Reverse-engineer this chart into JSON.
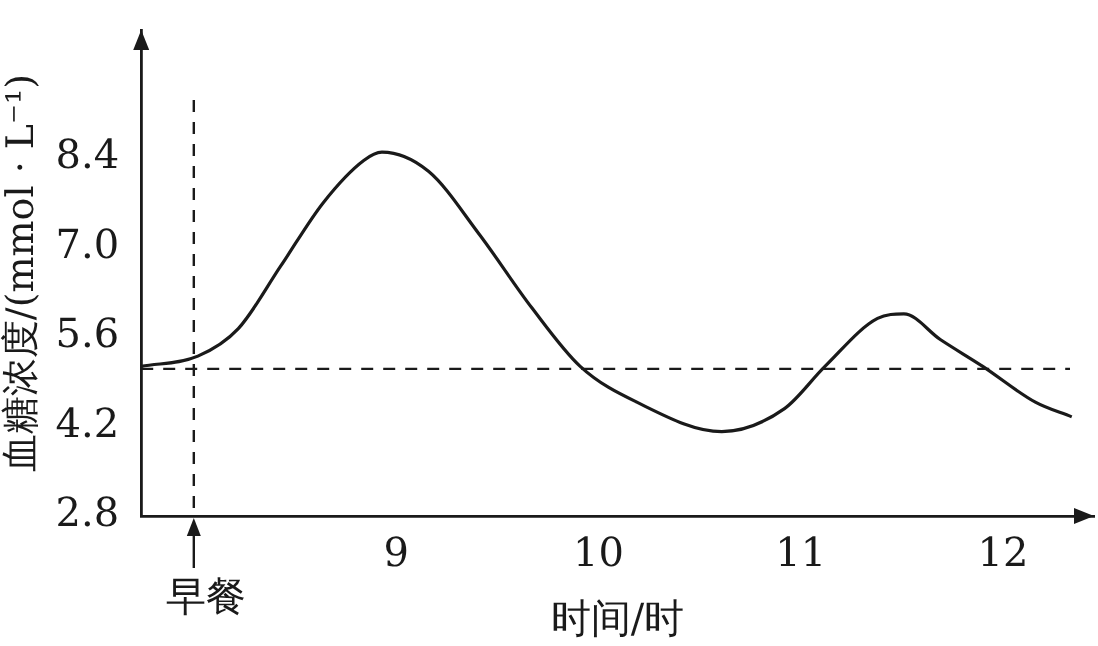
{
  "chart_data": {
    "type": "line",
    "xlabel": "时间/时",
    "ylabel": "血糖浓度/(mmol · L⁻¹)",
    "x": [
      7.74,
      8.02,
      8.22,
      8.43,
      8.64,
      8.84,
      8.93,
      9.16,
      9.41,
      9.67,
      9.91,
      10.19,
      10.61,
      10.92,
      11.12,
      11.38,
      11.51,
      11.69,
      11.9,
      12.16,
      12.34
    ],
    "series": [
      {
        "color": "#1a1a1a",
        "values": [
          5.14,
          5.3,
          5.73,
          6.71,
          7.7,
          8.36,
          8.49,
          8.19,
          7.21,
          6.06,
          5.14,
          4.58,
          4.12,
          4.48,
          5.14,
          5.89,
          5.96,
          5.56,
          5.14,
          4.58,
          4.35
        ]
      }
    ],
    "xlim": [
      7.74,
      12.45
    ],
    "xticks": [
      9,
      10,
      11,
      12
    ],
    "ylim": [
      2.8,
      10.4
    ],
    "yticks": [
      2.8,
      4.2,
      5.6,
      {
        "value": 7,
        "label": "7.0"
      },
      8.4
    ],
    "ref_lines": [
      {
        "axis": "x",
        "value": 8,
        "label": "早餐",
        "line_style": "dashed"
      },
      {
        "axis": "y",
        "value": 5.1,
        "line_style": "dashed"
      }
    ],
    "grid": false,
    "legend": false,
    "marker": "none",
    "line_style": "solid"
  }
}
